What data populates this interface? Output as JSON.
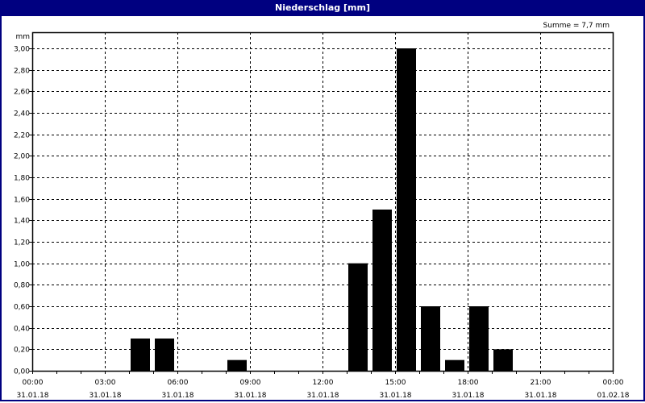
{
  "window": {
    "title": "Niederschlag [mm]"
  },
  "chart_data": {
    "type": "bar",
    "title": "Niederschlag [mm]",
    "ylabel": "mm",
    "annotation": "Summe = 7,7 mm",
    "ylim": [
      0,
      3.0
    ],
    "yticks": [
      "0,00",
      "0,20",
      "0,40",
      "0,60",
      "0,80",
      "1,00",
      "1,20",
      "1,40",
      "1,60",
      "1,80",
      "2,00",
      "2,20",
      "2,40",
      "2,60",
      "2,80",
      "3,00"
    ],
    "xlim_hours": [
      0,
      24
    ],
    "xticks": [
      {
        "time": "00:00",
        "date": "31.01.18"
      },
      {
        "time": "03:00",
        "date": "31.01.18"
      },
      {
        "time": "06:00",
        "date": "31.01.18"
      },
      {
        "time": "09:00",
        "date": "31.01.18"
      },
      {
        "time": "12:00",
        "date": "31.01.18"
      },
      {
        "time": "15:00",
        "date": "31.01.18"
      },
      {
        "time": "18:00",
        "date": "31.01.18"
      },
      {
        "time": "21:00",
        "date": "31.01.18"
      },
      {
        "time": "00:00",
        "date": "01.02.18"
      }
    ],
    "bars": [
      {
        "hour": 4,
        "value": 0.3
      },
      {
        "hour": 5,
        "value": 0.3
      },
      {
        "hour": 8,
        "value": 0.1
      },
      {
        "hour": 13,
        "value": 1.0
      },
      {
        "hour": 14,
        "value": 1.5
      },
      {
        "hour": 15,
        "value": 3.0
      },
      {
        "hour": 16,
        "value": 0.6
      },
      {
        "hour": 17,
        "value": 0.1
      },
      {
        "hour": 18,
        "value": 0.6
      },
      {
        "hour": 19,
        "value": 0.2
      }
    ],
    "grid": true,
    "bar_color": "#000000",
    "titlebar_color": "#000080"
  }
}
